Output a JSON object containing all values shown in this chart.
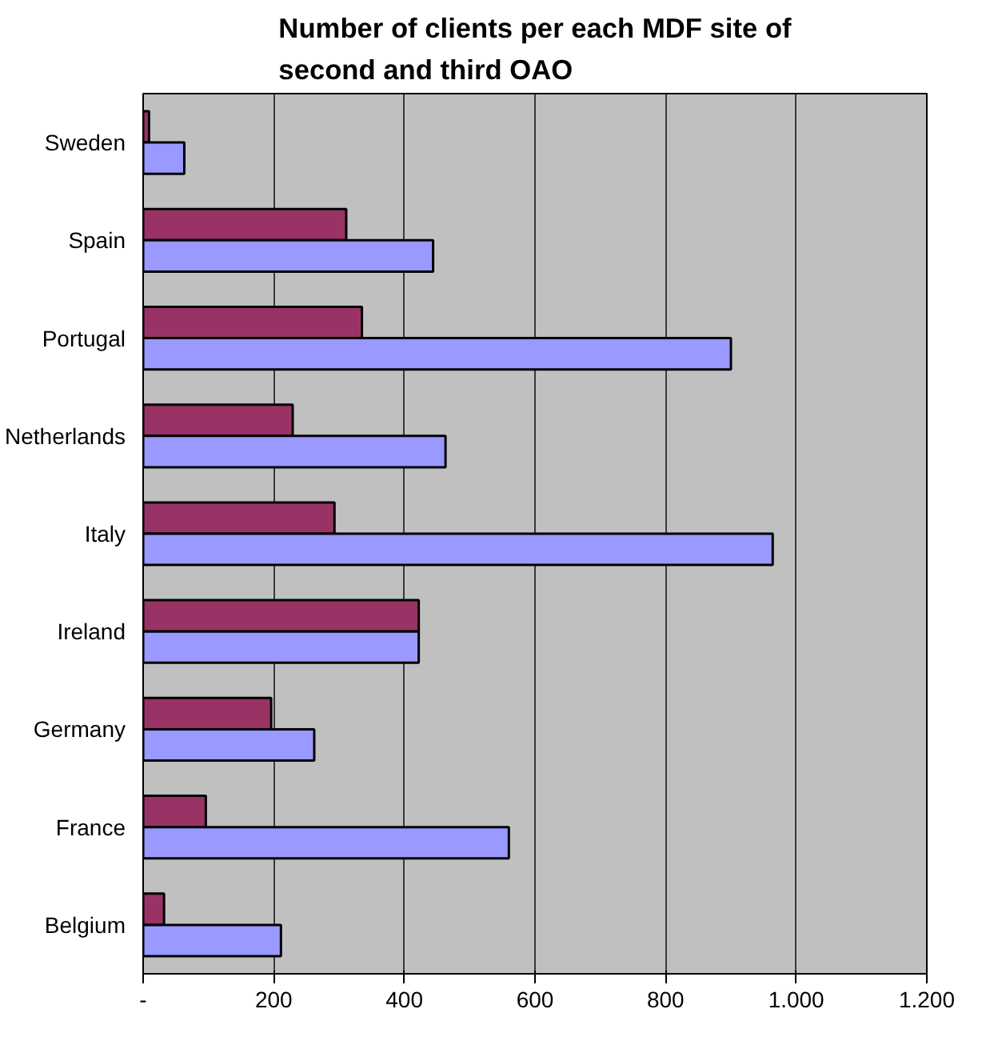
{
  "chart_data": {
    "type": "bar",
    "orientation": "horizontal",
    "title": "Number of clients per each MDF site of second and third OAO",
    "categories": [
      "Sweden",
      "Spain",
      "Portugal",
      "Netherlands",
      "Italy",
      "Ireland",
      "Germany",
      "France",
      "Belgium"
    ],
    "series": [
      {
        "color": "#993366",
        "values": [
          9,
          311,
          335,
          229,
          293,
          422,
          196,
          96,
          32
        ]
      },
      {
        "color": "#9999ff",
        "values": [
          63,
          444,
          900,
          463,
          964,
          422,
          262,
          560,
          211
        ]
      }
    ],
    "xlim": [
      0,
      1200
    ],
    "xticks": [
      {
        "value": 0,
        "label": "-"
      },
      200,
      400,
      600,
      800,
      {
        "value": 1000,
        "label": "1.000"
      },
      {
        "value": 1200,
        "label": "1.200"
      }
    ],
    "grid": "x"
  }
}
